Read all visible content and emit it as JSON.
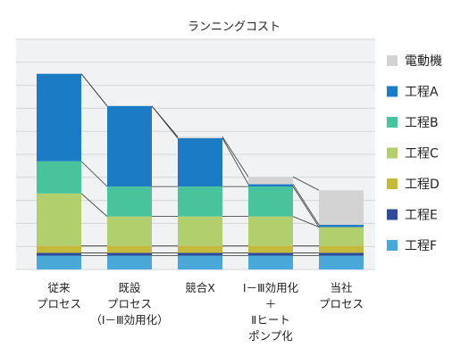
{
  "chart_data": {
    "type": "bar",
    "stacked": true,
    "title": "ランニングコスト",
    "categories": [
      [
        "従来",
        "プロセス"
      ],
      [
        "既設",
        "プロセス",
        "（Ⅰ－Ⅲ効用化）"
      ],
      [
        "競合X"
      ],
      [
        "Ⅰ－Ⅲ効用化",
        "＋",
        "Ⅱヒート",
        "ポンプ化"
      ],
      [
        "当社",
        "プロセス"
      ]
    ],
    "series": [
      {
        "name": "工程F",
        "color": "#4aa8d8",
        "values": [
          6.0,
          6.0,
          6.0,
          6.0,
          6.0
        ]
      },
      {
        "name": "工程E",
        "color": "#2e4a9a",
        "values": [
          1.2,
          1.2,
          1.2,
          1.2,
          1.2
        ]
      },
      {
        "name": "工程D",
        "color": "#c4b93a",
        "values": [
          3.0,
          3.0,
          3.0,
          3.0,
          3.0
        ]
      },
      {
        "name": "工程C",
        "color": "#b2cf6e",
        "values": [
          22.8,
          12.8,
          12.8,
          12.8,
          8.2
        ]
      },
      {
        "name": "工程B",
        "color": "#48c39b",
        "values": [
          14.0,
          13.0,
          13.0,
          13.0,
          0.0
        ]
      },
      {
        "name": "工程A",
        "color": "#1b7bc4",
        "values": [
          38.0,
          35.0,
          21.0,
          1.0,
          1.0
        ]
      },
      {
        "name": "電動機",
        "color": "#d3d3d3",
        "values": [
          0.0,
          0.0,
          0.6,
          3.2,
          15.0
        ]
      }
    ],
    "connector_lines": true,
    "ylim": [
      0,
      100
    ],
    "gridlines": true,
    "legend_position": "right",
    "xlabel": "",
    "ylabel": ""
  }
}
